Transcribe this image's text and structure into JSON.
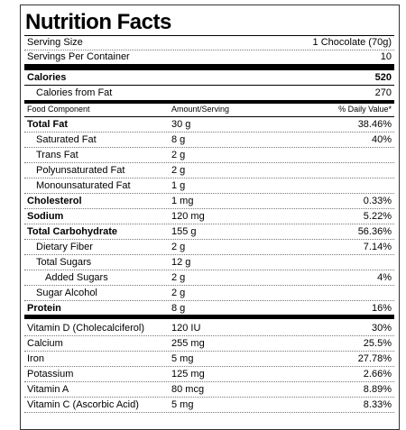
{
  "header": {
    "title": "Nutrition Facts",
    "serving_size_label": "Serving Size",
    "serving_size": "1 Chocolate (70g)",
    "servings_label": "Servings Per Container",
    "servings": "10"
  },
  "calories": {
    "label": "Calories",
    "value": "520",
    "from_fat_label": "Calories from Fat",
    "from_fat_value": "270"
  },
  "table": {
    "columns": [
      "Food Component",
      "Amount/Serving",
      "% Daily Value*"
    ],
    "rows": [
      {
        "name": "Total Fat",
        "amount": "30 g",
        "dv": "38.46%"
      },
      {
        "name": "Saturated Fat",
        "amount": "8 g",
        "dv": "40%"
      },
      {
        "name": "Trans Fat",
        "amount": "2 g"
      },
      {
        "name": "Polyunsaturated Fat",
        "amount": "2 g"
      },
      {
        "name": "Monounsaturated Fat",
        "amount": "1 g"
      },
      {
        "name": "Cholesterol",
        "amount": "1 mg",
        "dv": "0.33%"
      },
      {
        "name": "Sodium",
        "amount": "120 mg",
        "dv": "5.22%"
      },
      {
        "name": "Total Carbohydrate",
        "amount": "155 g",
        "dv": "56.36%"
      },
      {
        "name": "Dietary Fiber",
        "amount": "2 g",
        "dv": "7.14%"
      },
      {
        "name": "Total Sugars",
        "amount": "12 g"
      },
      {
        "name": "Added Sugars",
        "amount": "2 g",
        "dv": "4%"
      },
      {
        "name": "Sugar Alcohol",
        "amount": "2 g"
      },
      {
        "name": "Protein",
        "amount": "8 g",
        "dv": "16%"
      }
    ],
    "vitamins": [
      {
        "name": "Vitamin D (Cholecalciferol)",
        "amount": "120 IU",
        "dv": "30%"
      },
      {
        "name": "Calcium",
        "amount": "255 mg",
        "dv": "25.5%"
      },
      {
        "name": "Iron",
        "amount": "5 mg",
        "dv": "27.78%"
      },
      {
        "name": "Potassium",
        "amount": "125 mg",
        "dv": "2.66%"
      },
      {
        "name": "Vitamin A",
        "amount": "80 mcg",
        "dv": "8.89%"
      },
      {
        "name": "Vitamin C (Ascorbic Acid)",
        "amount": "5 mg",
        "dv": "8.33%"
      }
    ]
  }
}
